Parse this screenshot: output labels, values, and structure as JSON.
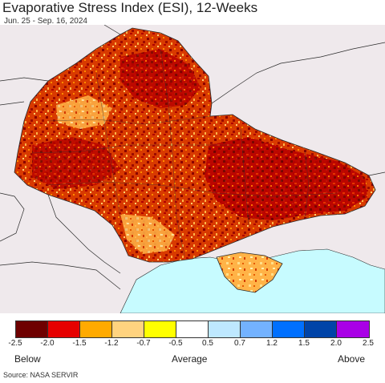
{
  "title": "Evaporative Stress Index (ESI), 12-Weeks",
  "subtitle": "Jun. 25 - Sep. 16, 2024",
  "map": {
    "background_color": "#efe9ec",
    "sea_color": "#c7fbff",
    "border_color": "#2a2a2a",
    "dominant_colors": [
      "#7a0000",
      "#d40000",
      "#ff5a00",
      "#ffa500",
      "#ffd280"
    ]
  },
  "legend": {
    "colors": [
      "#6e0000",
      "#e60000",
      "#ffaa00",
      "#ffd37f",
      "#ffff00",
      "#ffffff",
      "#bee8ff",
      "#73b2ff",
      "#0070ff",
      "#0044a8",
      "#a900e6"
    ],
    "ticks": [
      "-2.5",
      "-2.0",
      "-1.5",
      "-1.2",
      "-0.7",
      "-0.5",
      "0.5",
      "0.7",
      "1.2",
      "1.5",
      "2.0",
      "2.5"
    ],
    "below_label": "Below",
    "average_label": "Average",
    "above_label": "Above"
  },
  "source": "Source: NASA SERVIR"
}
